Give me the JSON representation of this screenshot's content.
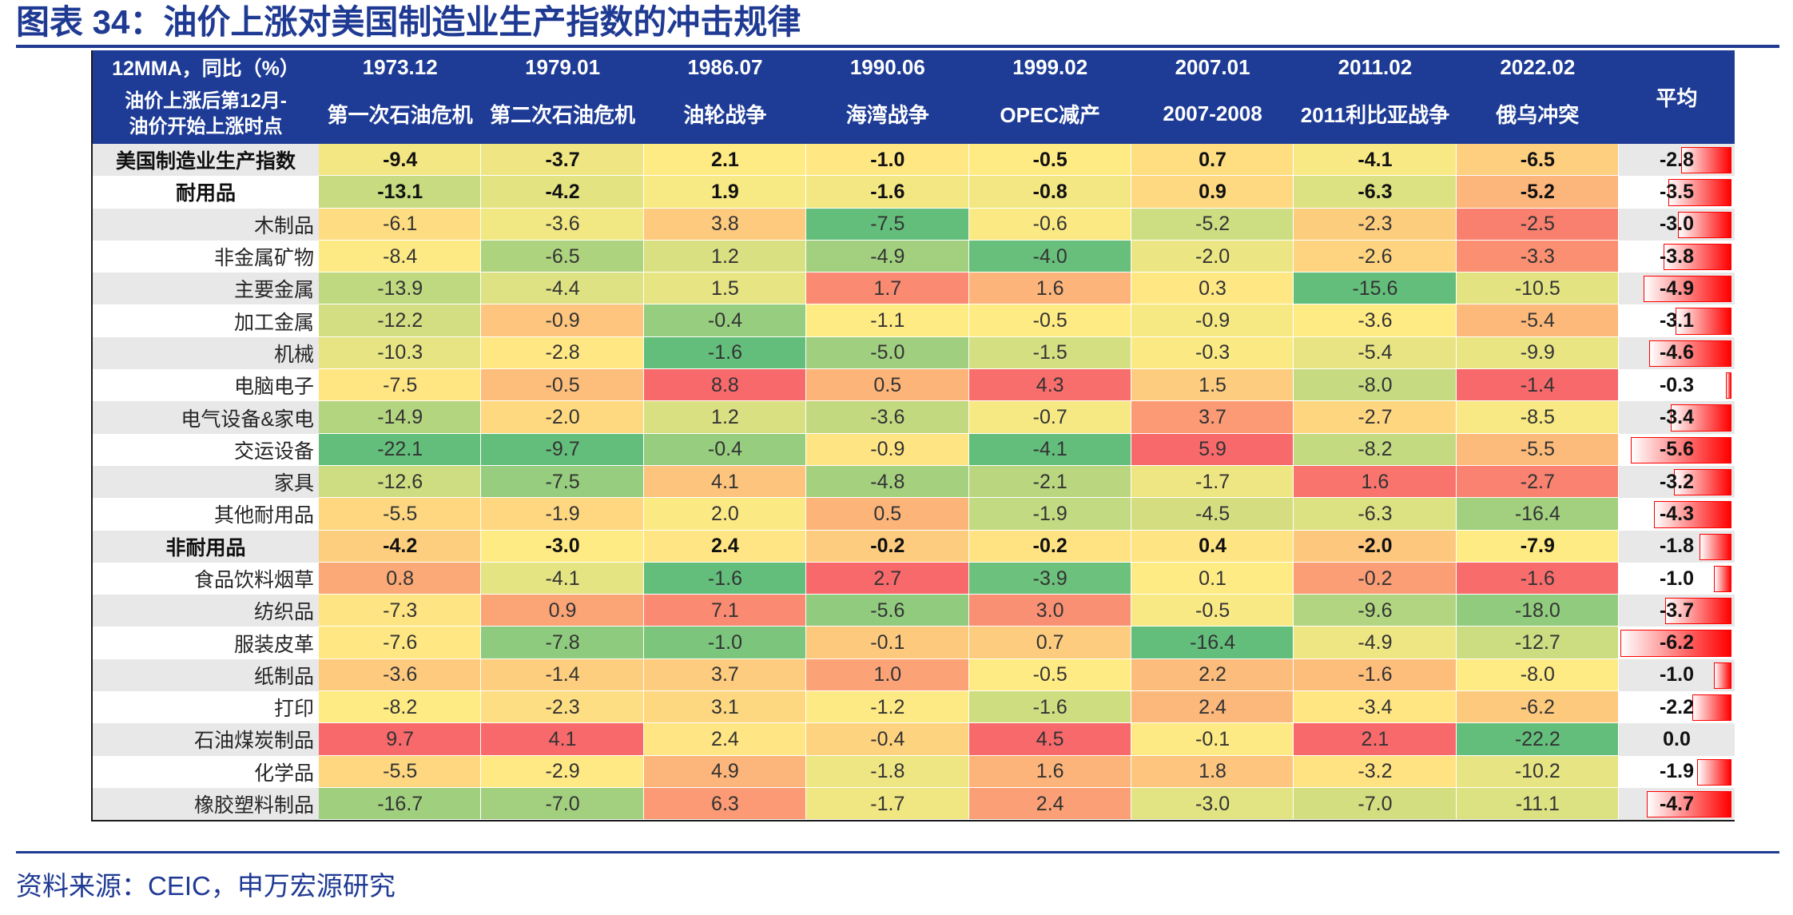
{
  "colors": {
    "accent": "#1F3A93",
    "header_bg": "#1E3C96",
    "alt_row": "#E8E8E8"
  },
  "source": "资料来源：CEIC，申万宏源研究",
  "chart_data": {
    "type": "heatmap",
    "title": "图表 34：油价上涨对美国制造业生产指数的冲击规律",
    "header": {
      "unit_label": "12MMA，同比（%）",
      "row_label_lines": [
        "油价上涨后第12月-",
        "油价开始上涨时点"
      ],
      "average_label": "平均"
    },
    "columns": [
      {
        "date": "1973.12",
        "event": "第一次石油危机"
      },
      {
        "date": "1979.01",
        "event": "第二次石油危机"
      },
      {
        "date": "1986.07",
        "event": "油轮战争"
      },
      {
        "date": "1990.06",
        "event": "海湾战争"
      },
      {
        "date": "1999.02",
        "event": "OPEC减产"
      },
      {
        "date": "2007.01",
        "event": "2007-2008"
      },
      {
        "date": "2011.02",
        "event": "2011利比亚战争"
      },
      {
        "date": "2022.02",
        "event": "俄乌冲突"
      }
    ],
    "rows": [
      {
        "name": "美国制造业生产指数",
        "bold": true,
        "values": [
          -9.4,
          -3.7,
          2.1,
          -1.0,
          -0.5,
          0.7,
          -4.1,
          -6.5
        ],
        "average": -2.8
      },
      {
        "name": "耐用品",
        "bold": true,
        "values": [
          -13.1,
          -4.2,
          1.9,
          -1.6,
          -0.8,
          0.9,
          -6.3,
          -5.2
        ],
        "average": -3.5
      },
      {
        "name": "木制品",
        "bold": false,
        "values": [
          -6.1,
          -3.6,
          3.8,
          -7.5,
          -0.6,
          -5.2,
          -2.3,
          -2.5
        ],
        "average": -3.0
      },
      {
        "name": "非金属矿物",
        "bold": false,
        "values": [
          -8.4,
          -6.5,
          1.2,
          -4.9,
          -4.0,
          -2.0,
          -2.6,
          -3.3
        ],
        "average": -3.8
      },
      {
        "name": "主要金属",
        "bold": false,
        "values": [
          -13.9,
          -4.4,
          1.5,
          1.7,
          1.6,
          0.3,
          -15.6,
          -10.5
        ],
        "average": -4.9
      },
      {
        "name": "加工金属",
        "bold": false,
        "values": [
          -12.2,
          -0.9,
          -0.4,
          -1.1,
          -0.5,
          -0.9,
          -3.6,
          -5.4
        ],
        "average": -3.1
      },
      {
        "name": "机械",
        "bold": false,
        "values": [
          -10.3,
          -2.8,
          -1.6,
          -5.0,
          -1.5,
          -0.3,
          -5.4,
          -9.9
        ],
        "average": -4.6
      },
      {
        "name": "电脑电子",
        "bold": false,
        "values": [
          -7.5,
          -0.5,
          8.8,
          0.5,
          4.3,
          1.5,
          -8.0,
          -1.4
        ],
        "average": -0.3
      },
      {
        "name": "电气设备&家电",
        "bold": false,
        "values": [
          -14.9,
          -2.0,
          1.2,
          -3.6,
          -0.7,
          3.7,
          -2.7,
          -8.5
        ],
        "average": -3.4
      },
      {
        "name": "交运设备",
        "bold": false,
        "values": [
          -22.1,
          -9.7,
          -0.4,
          -0.9,
          -4.1,
          5.9,
          -8.2,
          -5.5
        ],
        "average": -5.6
      },
      {
        "name": "家具",
        "bold": false,
        "values": [
          -12.6,
          -7.5,
          4.1,
          -4.8,
          -2.1,
          -1.7,
          1.6,
          -2.7
        ],
        "average": -3.2
      },
      {
        "name": "其他耐用品",
        "bold": false,
        "values": [
          -5.5,
          -1.9,
          2.0,
          0.5,
          -1.9,
          -4.5,
          -6.3,
          -16.4
        ],
        "average": -4.3
      },
      {
        "name": "非耐用品",
        "bold": true,
        "values": [
          -4.2,
          -3.0,
          2.4,
          -0.2,
          -0.2,
          0.4,
          -2.0,
          -7.9
        ],
        "average": -1.8
      },
      {
        "name": "食品饮料烟草",
        "bold": false,
        "values": [
          0.8,
          -4.1,
          -1.6,
          2.7,
          -3.9,
          0.1,
          -0.2,
          -1.6
        ],
        "average": -1.0
      },
      {
        "name": "纺织品",
        "bold": false,
        "values": [
          -7.3,
          0.9,
          7.1,
          -5.6,
          3.0,
          -0.5,
          -9.6,
          -18.0
        ],
        "average": -3.7
      },
      {
        "name": "服装皮革",
        "bold": false,
        "values": [
          -7.6,
          -7.8,
          -1.0,
          -0.1,
          0.7,
          -16.4,
          -4.9,
          -12.7
        ],
        "average": -6.2
      },
      {
        "name": "纸制品",
        "bold": false,
        "values": [
          -3.6,
          -1.4,
          3.7,
          1.0,
          -0.5,
          2.2,
          -1.6,
          -8.0
        ],
        "average": -1.0
      },
      {
        "name": "打印",
        "bold": false,
        "values": [
          -8.2,
          -2.3,
          3.1,
          -1.2,
          -1.6,
          2.4,
          -3.4,
          -6.2
        ],
        "average": -2.2
      },
      {
        "name": "石油煤炭制品",
        "bold": false,
        "values": [
          9.7,
          4.1,
          2.4,
          -0.4,
          4.5,
          -0.1,
          2.1,
          -22.2
        ],
        "average": 0.0
      },
      {
        "name": "化学品",
        "bold": false,
        "values": [
          -5.5,
          -2.9,
          4.9,
          -1.8,
          1.6,
          1.8,
          -3.2,
          -10.2
        ],
        "average": -1.9
      },
      {
        "name": "橡胶塑料制品",
        "bold": false,
        "values": [
          -16.7,
          -7.0,
          6.3,
          -1.7,
          2.4,
          -3.0,
          -7.0,
          -11.1
        ],
        "average": -4.7
      }
    ],
    "color_scale": {
      "low": "#63BE7B",
      "mid": "#FFEB84",
      "high": "#F8696B"
    },
    "average_bar_color": "#FF0000"
  }
}
